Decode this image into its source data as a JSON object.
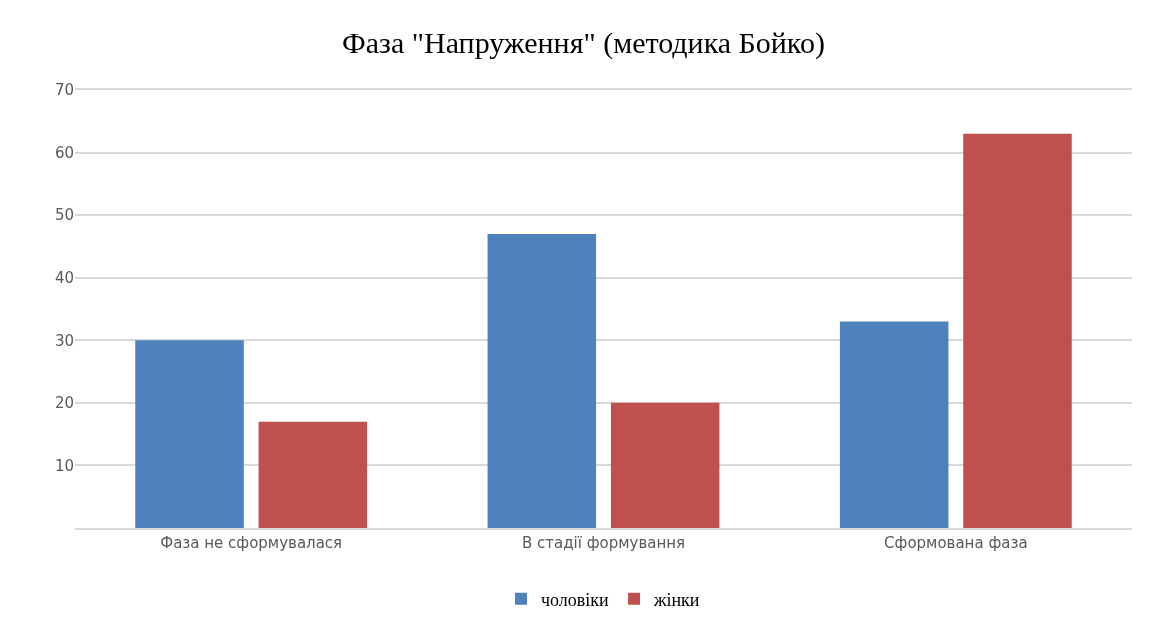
{
  "chart_data": {
    "type": "bar",
    "title": "Фаза \"Напруження\" (методика Бойко)",
    "categories": [
      "Фаза не сформувалася",
      "В стадії формування",
      "Сформована фаза"
    ],
    "series": [
      {
        "name": "чоловіки",
        "color": "#4f81bd",
        "values": [
          30,
          47,
          33
        ]
      },
      {
        "name": "жінки",
        "color": "#c0504d",
        "values": [
          17,
          20,
          63
        ]
      }
    ],
    "ylim": [
      0,
      70
    ],
    "yticks": [
      {
        "value": 0,
        "label": null
      },
      10,
      20,
      30,
      40,
      50,
      60,
      70
    ],
    "grid": "y",
    "legend": "bottom"
  }
}
